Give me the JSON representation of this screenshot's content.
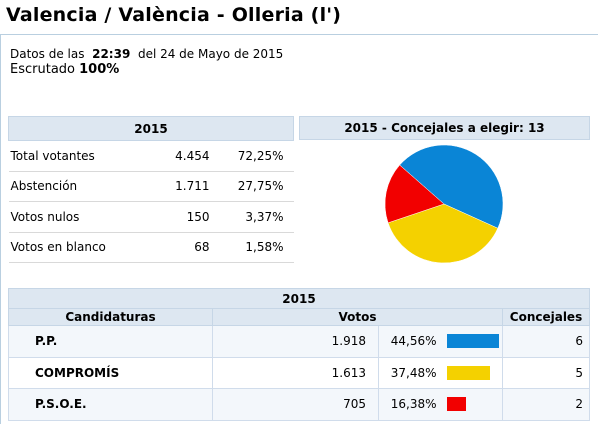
{
  "title": "Valencia / València - Olleria (l')",
  "info": {
    "datos_label": "Datos de las",
    "time": "22:39",
    "date_text": "del 24 de Mayo de 2015",
    "escrutado_label": "Escrutado",
    "escrutado_value": "100%"
  },
  "summary": {
    "header": "2015",
    "rows": [
      {
        "label": "Total votantes",
        "value": "4.454",
        "pct": "72,25%"
      },
      {
        "label": "Abstención",
        "value": "1.711",
        "pct": "27,75%"
      },
      {
        "label": "Votos nulos",
        "value": "150",
        "pct": "3,37%"
      },
      {
        "label": "Votos en blanco",
        "value": "68",
        "pct": "1,58%"
      }
    ]
  },
  "pie": {
    "header": "2015 - Concejales a elegir: 13",
    "slices": [
      {
        "party": "P.P.",
        "fraction": 0.4456,
        "color": "#0a85d6"
      },
      {
        "party": "COMPROMÍS",
        "fraction": 0.3748,
        "color": "#f4d100"
      },
      {
        "party": "P.S.O.E.",
        "fraction": 0.1638,
        "color": "#f20000"
      }
    ]
  },
  "results": {
    "year": "2015",
    "col_candidaturas": "Candidaturas",
    "col_votos": "Votos",
    "col_concejales": "Concejales",
    "rows": [
      {
        "party": "P.P.",
        "votes": "1.918",
        "pct": "44,56%",
        "pct_value": 44.56,
        "color": "#0a85d6",
        "seats": "6"
      },
      {
        "party": "COMPROMÍS",
        "votes": "1.613",
        "pct": "37,48%",
        "pct_value": 37.48,
        "color": "#f4d100",
        "seats": "5"
      },
      {
        "party": "P.S.O.E.",
        "votes": "705",
        "pct": "16,38%",
        "pct_value": 16.38,
        "color": "#f20000",
        "seats": "2"
      }
    ]
  }
}
